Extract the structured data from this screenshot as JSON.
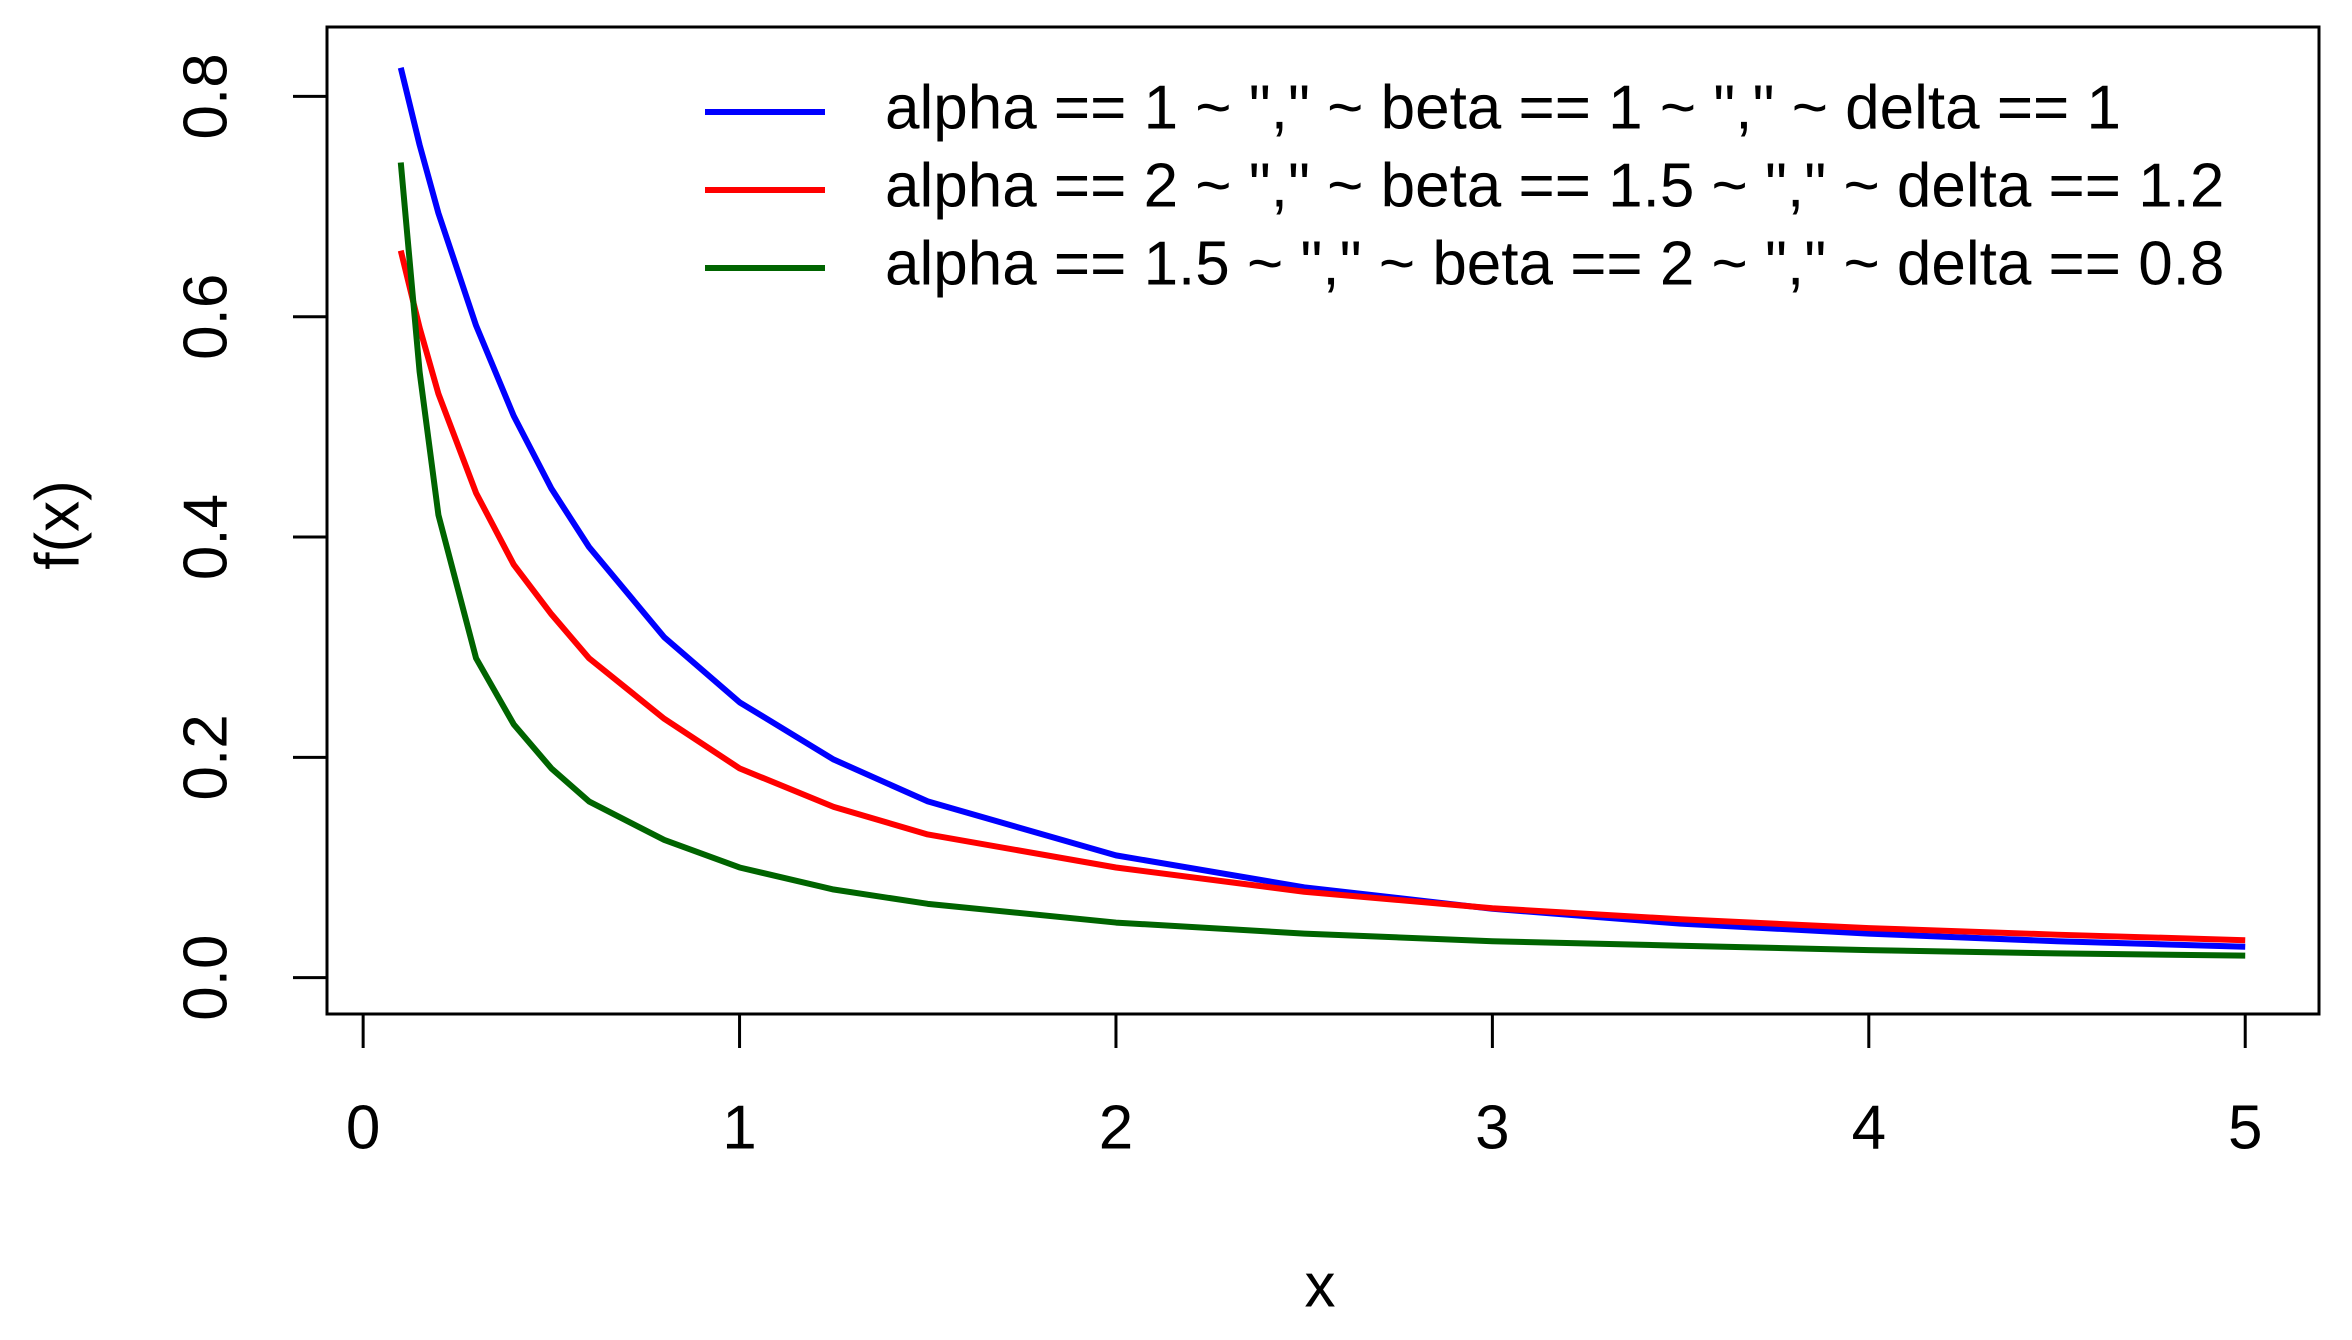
{
  "chart_data": {
    "type": "line",
    "x_label": "x",
    "y_label": "f(x)",
    "x": [
      0.1,
      0.15,
      0.2,
      0.3,
      0.4,
      0.5,
      0.6,
      0.8,
      1,
      1.25,
      1.5,
      2,
      2.5,
      3,
      3.5,
      4,
      4.5,
      5
    ],
    "series": [
      {
        "name": "alpha == 1 ~ \",\" ~ beta == 1 ~ \",\" ~ delta == 1",
        "color": "#0000ff",
        "values": [
          0.826,
          0.756,
          0.694,
          0.592,
          0.51,
          0.444,
          0.391,
          0.309,
          0.25,
          0.198,
          0.16,
          0.111,
          0.082,
          0.0625,
          0.049,
          0.04,
          0.033,
          0.028
        ]
      },
      {
        "name": "alpha == 2 ~ \",\" ~ beta == 1.5 ~ \",\" ~ delta == 1.2",
        "color": "#ff0000",
        "values": [
          0.66,
          0.59,
          0.53,
          0.44,
          0.375,
          0.33,
          0.29,
          0.235,
          0.19,
          0.155,
          0.13,
          0.1,
          0.078,
          0.063,
          0.053,
          0.045,
          0.039,
          0.034
        ]
      },
      {
        "name": "alpha == 1.5 ~ \",\" ~ beta == 2 ~ \",\" ~ delta == 0.8",
        "color": "#006400",
        "values": [
          0.74,
          0.55,
          0.42,
          0.29,
          0.23,
          0.19,
          0.16,
          0.125,
          0.1,
          0.08,
          0.067,
          0.05,
          0.04,
          0.033,
          0.029,
          0.025,
          0.022,
          0.02
        ]
      }
    ],
    "xlim": [
      -0.096,
      5.196
    ],
    "xticks": [
      0,
      1,
      2,
      3,
      4,
      5
    ],
    "ylim": [
      -0.033,
      0.863
    ],
    "yticks": [
      0.0,
      0.2,
      0.4,
      0.6,
      0.8
    ],
    "legend": "topright",
    "grid": false
  }
}
